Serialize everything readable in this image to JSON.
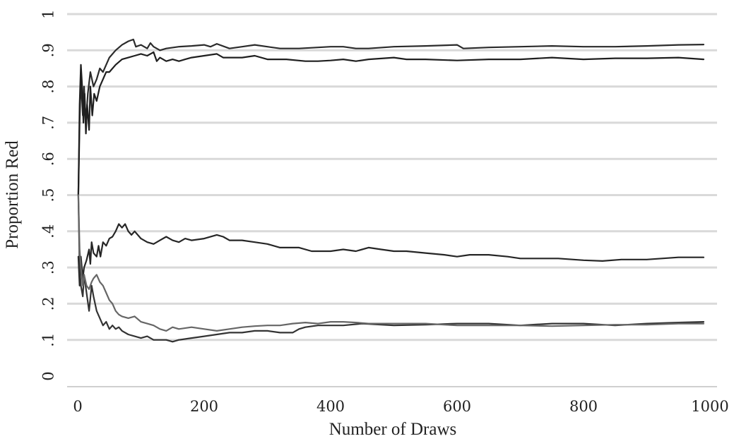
{
  "chart_data": {
    "type": "line",
    "title": "",
    "xlabel": "Number of Draws",
    "ylabel": "Proportion Red",
    "xlim": [
      0,
      1000
    ],
    "ylim": [
      0,
      1
    ],
    "x_ticks": [
      0,
      200,
      400,
      600,
      800,
      1000
    ],
    "x_tick_labels": [
      "0",
      "200",
      "400",
      "600",
      "800",
      "1000"
    ],
    "y_ticks": [
      0,
      0.1,
      0.2,
      0.3,
      0.4,
      0.5,
      0.6,
      0.7,
      0.8,
      0.9,
      1
    ],
    "y_tick_labels": [
      "0",
      ".1",
      ".2",
      ".3",
      ".4",
      ".5",
      ".6",
      ".7",
      ".8",
      ".9",
      "1"
    ],
    "grid": true,
    "legend": false,
    "series": [
      {
        "color": "#2b2b2b",
        "points": [
          [
            1,
            0.5
          ],
          [
            3,
            0.7
          ],
          [
            5,
            0.82
          ],
          [
            8,
            0.72
          ],
          [
            10,
            0.8
          ],
          [
            13,
            0.7
          ],
          [
            16,
            0.78
          ],
          [
            20,
            0.84
          ],
          [
            25,
            0.8
          ],
          [
            30,
            0.82
          ],
          [
            35,
            0.85
          ],
          [
            40,
            0.84
          ],
          [
            45,
            0.86
          ],
          [
            50,
            0.88
          ],
          [
            60,
            0.9
          ],
          [
            70,
            0.915
          ],
          [
            80,
            0.925
          ],
          [
            88,
            0.93
          ],
          [
            92,
            0.91
          ],
          [
            100,
            0.915
          ],
          [
            110,
            0.905
          ],
          [
            115,
            0.92
          ],
          [
            120,
            0.91
          ],
          [
            130,
            0.9
          ],
          [
            140,
            0.905
          ],
          [
            160,
            0.91
          ],
          [
            180,
            0.912
          ],
          [
            200,
            0.915
          ],
          [
            210,
            0.91
          ],
          [
            220,
            0.918
          ],
          [
            240,
            0.905
          ],
          [
            260,
            0.91
          ],
          [
            280,
            0.915
          ],
          [
            300,
            0.91
          ],
          [
            320,
            0.905
          ],
          [
            350,
            0.905
          ],
          [
            380,
            0.908
          ],
          [
            400,
            0.91
          ],
          [
            420,
            0.91
          ],
          [
            440,
            0.905
          ],
          [
            460,
            0.905
          ],
          [
            500,
            0.91
          ],
          [
            550,
            0.912
          ],
          [
            600,
            0.915
          ],
          [
            610,
            0.905
          ],
          [
            650,
            0.908
          ],
          [
            700,
            0.91
          ],
          [
            750,
            0.912
          ],
          [
            800,
            0.91
          ],
          [
            850,
            0.91
          ],
          [
            900,
            0.912
          ],
          [
            950,
            0.915
          ],
          [
            990,
            0.916
          ]
        ]
      },
      {
        "color": "#1f1f1f",
        "points": [
          [
            1,
            0.5
          ],
          [
            3,
            0.75
          ],
          [
            5,
            0.86
          ],
          [
            7,
            0.8
          ],
          [
            9,
            0.7
          ],
          [
            11,
            0.78
          ],
          [
            13,
            0.67
          ],
          [
            15,
            0.75
          ],
          [
            18,
            0.68
          ],
          [
            20,
            0.8
          ],
          [
            23,
            0.72
          ],
          [
            26,
            0.78
          ],
          [
            30,
            0.76
          ],
          [
            35,
            0.8
          ],
          [
            40,
            0.82
          ],
          [
            45,
            0.84
          ],
          [
            50,
            0.84
          ],
          [
            60,
            0.86
          ],
          [
            70,
            0.875
          ],
          [
            80,
            0.88
          ],
          [
            90,
            0.885
          ],
          [
            100,
            0.89
          ],
          [
            110,
            0.885
          ],
          [
            120,
            0.895
          ],
          [
            125,
            0.87
          ],
          [
            130,
            0.88
          ],
          [
            140,
            0.87
          ],
          [
            150,
            0.875
          ],
          [
            160,
            0.87
          ],
          [
            170,
            0.875
          ],
          [
            180,
            0.88
          ],
          [
            200,
            0.885
          ],
          [
            220,
            0.89
          ],
          [
            230,
            0.88
          ],
          [
            260,
            0.88
          ],
          [
            280,
            0.885
          ],
          [
            300,
            0.875
          ],
          [
            330,
            0.875
          ],
          [
            360,
            0.87
          ],
          [
            380,
            0.87
          ],
          [
            400,
            0.872
          ],
          [
            420,
            0.875
          ],
          [
            440,
            0.87
          ],
          [
            460,
            0.875
          ],
          [
            500,
            0.88
          ],
          [
            520,
            0.875
          ],
          [
            550,
            0.875
          ],
          [
            600,
            0.872
          ],
          [
            650,
            0.875
          ],
          [
            700,
            0.875
          ],
          [
            750,
            0.88
          ],
          [
            800,
            0.875
          ],
          [
            850,
            0.878
          ],
          [
            900,
            0.878
          ],
          [
            950,
            0.88
          ],
          [
            990,
            0.875
          ]
        ]
      },
      {
        "color": "#262626",
        "points": [
          [
            1,
            0.33
          ],
          [
            3,
            0.25
          ],
          [
            5,
            0.33
          ],
          [
            8,
            0.27
          ],
          [
            10,
            0.3
          ],
          [
            14,
            0.32
          ],
          [
            18,
            0.35
          ],
          [
            20,
            0.31
          ],
          [
            22,
            0.37
          ],
          [
            25,
            0.34
          ],
          [
            30,
            0.33
          ],
          [
            33,
            0.36
          ],
          [
            36,
            0.33
          ],
          [
            40,
            0.37
          ],
          [
            45,
            0.36
          ],
          [
            50,
            0.38
          ],
          [
            55,
            0.385
          ],
          [
            60,
            0.4
          ],
          [
            65,
            0.42
          ],
          [
            70,
            0.41
          ],
          [
            75,
            0.42
          ],
          [
            80,
            0.4
          ],
          [
            85,
            0.39
          ],
          [
            90,
            0.4
          ],
          [
            100,
            0.38
          ],
          [
            110,
            0.37
          ],
          [
            120,
            0.365
          ],
          [
            130,
            0.375
          ],
          [
            140,
            0.385
          ],
          [
            150,
            0.375
          ],
          [
            160,
            0.37
          ],
          [
            170,
            0.38
          ],
          [
            180,
            0.375
          ],
          [
            200,
            0.38
          ],
          [
            220,
            0.39
          ],
          [
            230,
            0.385
          ],
          [
            240,
            0.375
          ],
          [
            260,
            0.375
          ],
          [
            280,
            0.37
          ],
          [
            300,
            0.365
          ],
          [
            320,
            0.355
          ],
          [
            350,
            0.355
          ],
          [
            370,
            0.345
          ],
          [
            400,
            0.345
          ],
          [
            420,
            0.35
          ],
          [
            440,
            0.345
          ],
          [
            460,
            0.355
          ],
          [
            480,
            0.35
          ],
          [
            500,
            0.345
          ],
          [
            520,
            0.345
          ],
          [
            550,
            0.34
          ],
          [
            580,
            0.335
          ],
          [
            600,
            0.33
          ],
          [
            620,
            0.335
          ],
          [
            650,
            0.335
          ],
          [
            680,
            0.33
          ],
          [
            700,
            0.325
          ],
          [
            730,
            0.325
          ],
          [
            760,
            0.325
          ],
          [
            800,
            0.32
          ],
          [
            830,
            0.318
          ],
          [
            860,
            0.322
          ],
          [
            900,
            0.322
          ],
          [
            950,
            0.328
          ],
          [
            990,
            0.328
          ]
        ]
      },
      {
        "color": "#333333",
        "points": [
          [
            1,
            0.5
          ],
          [
            3,
            0.3
          ],
          [
            5,
            0.25
          ],
          [
            8,
            0.22
          ],
          [
            10,
            0.28
          ],
          [
            14,
            0.23
          ],
          [
            18,
            0.18
          ],
          [
            22,
            0.25
          ],
          [
            25,
            0.22
          ],
          [
            30,
            0.18
          ],
          [
            35,
            0.16
          ],
          [
            40,
            0.14
          ],
          [
            45,
            0.15
          ],
          [
            50,
            0.13
          ],
          [
            55,
            0.14
          ],
          [
            60,
            0.13
          ],
          [
            65,
            0.135
          ],
          [
            70,
            0.125
          ],
          [
            80,
            0.115
          ],
          [
            90,
            0.11
          ],
          [
            100,
            0.105
          ],
          [
            110,
            0.11
          ],
          [
            120,
            0.1
          ],
          [
            130,
            0.1
          ],
          [
            140,
            0.1
          ],
          [
            150,
            0.095
          ],
          [
            160,
            0.1
          ],
          [
            180,
            0.105
          ],
          [
            200,
            0.11
          ],
          [
            220,
            0.115
          ],
          [
            240,
            0.12
          ],
          [
            260,
            0.12
          ],
          [
            280,
            0.125
          ],
          [
            300,
            0.125
          ],
          [
            320,
            0.12
          ],
          [
            340,
            0.12
          ],
          [
            350,
            0.13
          ],
          [
            360,
            0.135
          ],
          [
            380,
            0.14
          ],
          [
            400,
            0.14
          ],
          [
            420,
            0.14
          ],
          [
            450,
            0.145
          ],
          [
            500,
            0.14
          ],
          [
            550,
            0.142
          ],
          [
            600,
            0.145
          ],
          [
            650,
            0.145
          ],
          [
            700,
            0.14
          ],
          [
            750,
            0.145
          ],
          [
            800,
            0.145
          ],
          [
            850,
            0.14
          ],
          [
            900,
            0.145
          ],
          [
            950,
            0.148
          ],
          [
            990,
            0.15
          ]
        ]
      },
      {
        "color": "#666666",
        "points": [
          [
            1,
            0.5
          ],
          [
            3,
            0.35
          ],
          [
            5,
            0.3
          ],
          [
            8,
            0.25
          ],
          [
            10,
            0.28
          ],
          [
            14,
            0.25
          ],
          [
            18,
            0.24
          ],
          [
            22,
            0.26
          ],
          [
            25,
            0.27
          ],
          [
            30,
            0.28
          ],
          [
            35,
            0.26
          ],
          [
            40,
            0.25
          ],
          [
            45,
            0.23
          ],
          [
            50,
            0.21
          ],
          [
            55,
            0.2
          ],
          [
            60,
            0.18
          ],
          [
            65,
            0.17
          ],
          [
            70,
            0.165
          ],
          [
            80,
            0.16
          ],
          [
            90,
            0.165
          ],
          [
            100,
            0.15
          ],
          [
            110,
            0.145
          ],
          [
            120,
            0.14
          ],
          [
            130,
            0.13
          ],
          [
            140,
            0.125
          ],
          [
            150,
            0.135
          ],
          [
            160,
            0.13
          ],
          [
            180,
            0.135
          ],
          [
            200,
            0.13
          ],
          [
            220,
            0.125
          ],
          [
            240,
            0.13
          ],
          [
            260,
            0.135
          ],
          [
            280,
            0.138
          ],
          [
            300,
            0.14
          ],
          [
            320,
            0.14
          ],
          [
            340,
            0.145
          ],
          [
            360,
            0.148
          ],
          [
            380,
            0.145
          ],
          [
            400,
            0.15
          ],
          [
            420,
            0.15
          ],
          [
            440,
            0.148
          ],
          [
            460,
            0.145
          ],
          [
            500,
            0.145
          ],
          [
            550,
            0.145
          ],
          [
            600,
            0.14
          ],
          [
            650,
            0.14
          ],
          [
            700,
            0.14
          ],
          [
            750,
            0.138
          ],
          [
            800,
            0.14
          ],
          [
            850,
            0.142
          ],
          [
            900,
            0.142
          ],
          [
            950,
            0.145
          ],
          [
            990,
            0.145
          ]
        ]
      }
    ]
  }
}
